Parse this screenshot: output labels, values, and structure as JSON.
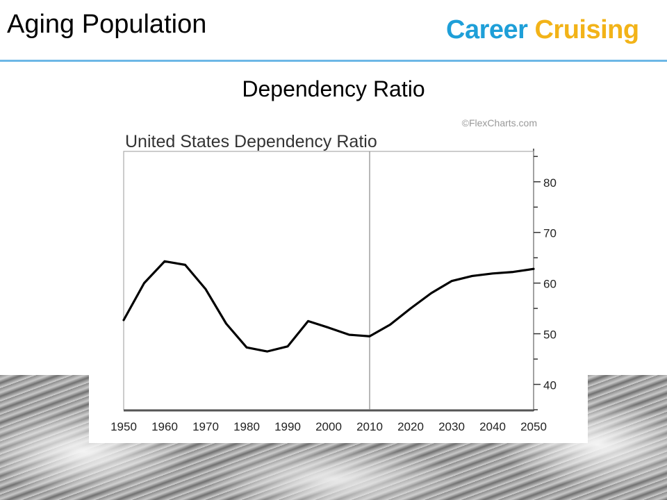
{
  "slide": {
    "title": "Aging Population",
    "subtitle": "Dependency Ratio",
    "brand_word1": "Career",
    "brand_word2": "Cruising"
  },
  "colors": {
    "brand_blue": "#1e9fd8",
    "brand_gold": "#f2b318",
    "rule": "#6cb7e6",
    "line": "#000000"
  },
  "chart_data": {
    "type": "line",
    "title": "United States Dependency Ratio",
    "source": "©FlexCharts.com",
    "xlabel": "",
    "ylabel": "",
    "x": [
      1950,
      1955,
      1960,
      1965,
      1970,
      1975,
      1980,
      1985,
      1990,
      1995,
      2000,
      2005,
      2010,
      2015,
      2020,
      2025,
      2030,
      2035,
      2040,
      2045,
      2050
    ],
    "series": [
      {
        "values": [
          52.7,
          60.0,
          64.3,
          63.6,
          58.8,
          52.0,
          47.3,
          46.5,
          47.5,
          52.5,
          51.2,
          49.8,
          49.5,
          51.8,
          55.0,
          58.0,
          60.4,
          61.4,
          61.9,
          62.2,
          62.8
        ]
      }
    ],
    "xlim": [
      1950,
      2050
    ],
    "ylim": [
      35,
      86
    ],
    "x_ticks": [
      "1950",
      "1960",
      "1970",
      "1980",
      "1990",
      "2000",
      "2010",
      "2020",
      "2030",
      "2040",
      "2050"
    ],
    "y_ticks": [
      "40",
      "50",
      "60",
      "70",
      "80"
    ],
    "reference_line_x": 2010,
    "grid": false,
    "y_axis_position": "right",
    "legend": "none"
  }
}
